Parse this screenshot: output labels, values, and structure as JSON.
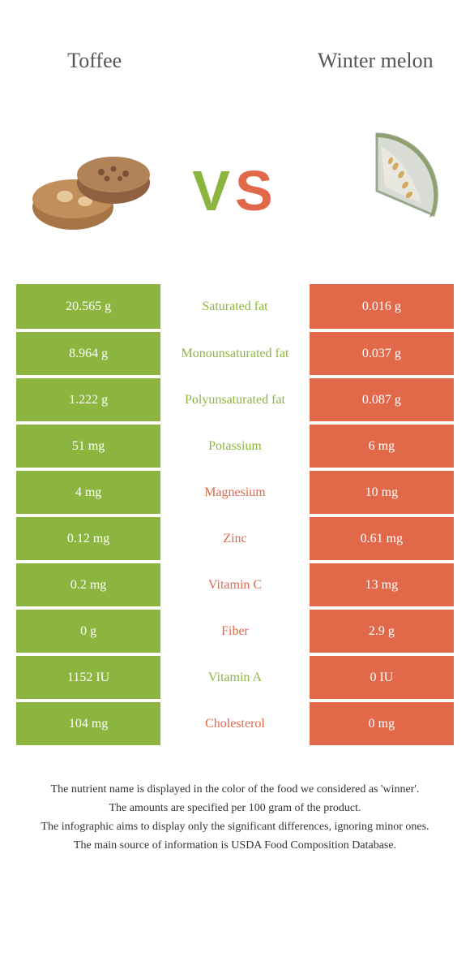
{
  "header": {
    "left_title": "Toffee",
    "right_title": "Winter melon",
    "vs_v": "V",
    "vs_s": "S"
  },
  "colors": {
    "left": "#8bb53f",
    "right": "#e2684a",
    "bg": "#ffffff",
    "text": "#333333"
  },
  "rows": [
    {
      "label": "Saturated fat",
      "left": "20.565 g",
      "right": "0.016 g",
      "winner": "left"
    },
    {
      "label": "Monounsaturated fat",
      "left": "8.964 g",
      "right": "0.037 g",
      "winner": "left"
    },
    {
      "label": "Polyunsaturated fat",
      "left": "1.222 g",
      "right": "0.087 g",
      "winner": "left"
    },
    {
      "label": "Potassium",
      "left": "51 mg",
      "right": "6 mg",
      "winner": "left"
    },
    {
      "label": "Magnesium",
      "left": "4 mg",
      "right": "10 mg",
      "winner": "right"
    },
    {
      "label": "Zinc",
      "left": "0.12 mg",
      "right": "0.61 mg",
      "winner": "right"
    },
    {
      "label": "Vitamin C",
      "left": "0.2 mg",
      "right": "13 mg",
      "winner": "right"
    },
    {
      "label": "Fiber",
      "left": "0 g",
      "right": "2.9 g",
      "winner": "right"
    },
    {
      "label": "Vitamin A",
      "left": "1152 IU",
      "right": "0 IU",
      "winner": "left"
    },
    {
      "label": "Cholesterol",
      "left": "104 mg",
      "right": "0 mg",
      "winner": "right"
    }
  ],
  "footer": {
    "line1": "The nutrient name is displayed in the color of the food we considered as 'winner'.",
    "line2": "The amounts are specified per 100 gram of the product.",
    "line3": "The infographic aims to display only the significant differences, ignoring minor ones.",
    "line4": "The main source of information is USDA Food Composition Database."
  }
}
